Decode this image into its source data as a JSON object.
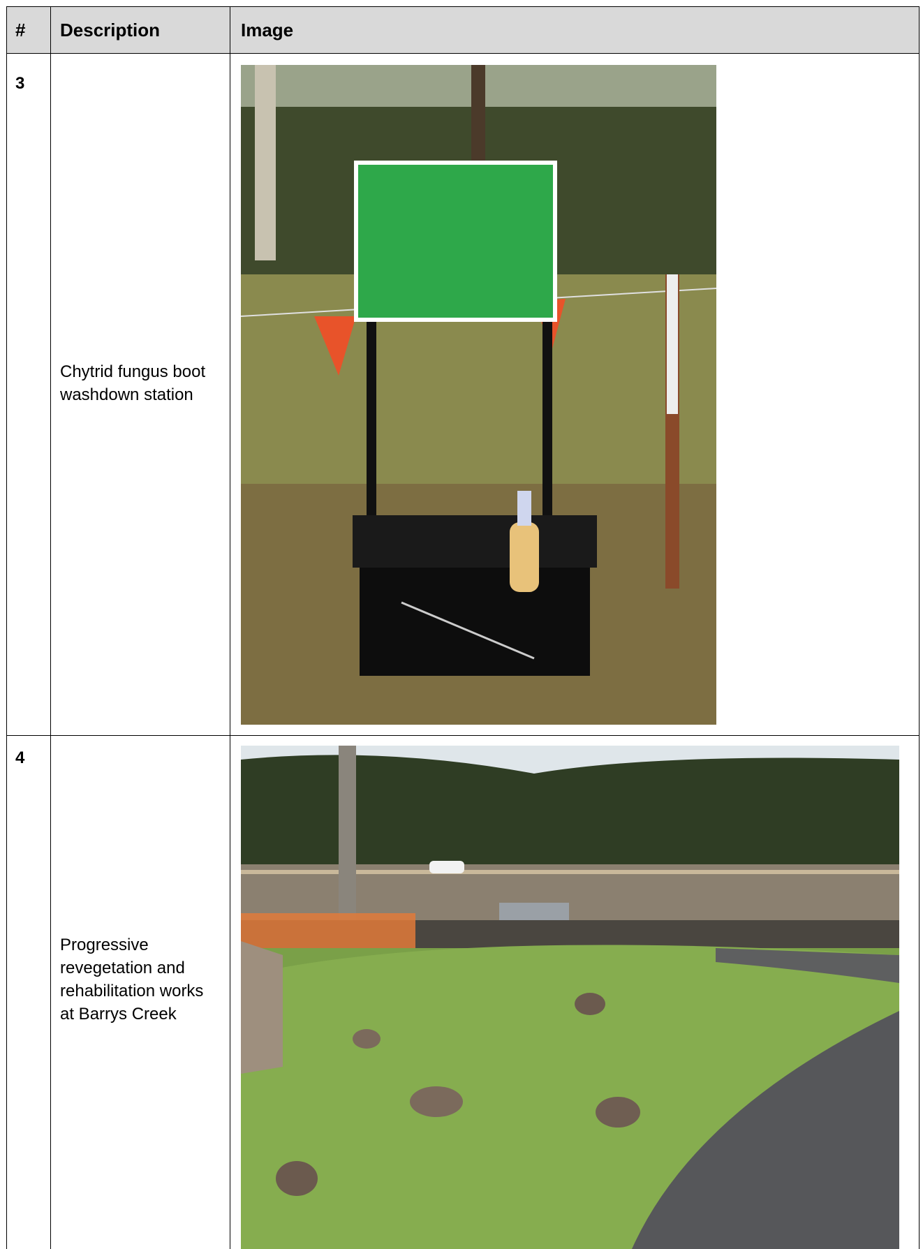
{
  "table": {
    "header": [
      "#",
      "Description",
      "Image"
    ],
    "rows": [
      [
        "3",
        "Chytrid fungus boot washdown station"
      ],
      [
        "4",
        "Progressive revegetation and rehabilitation works at Barrys Creek"
      ]
    ]
  }
}
